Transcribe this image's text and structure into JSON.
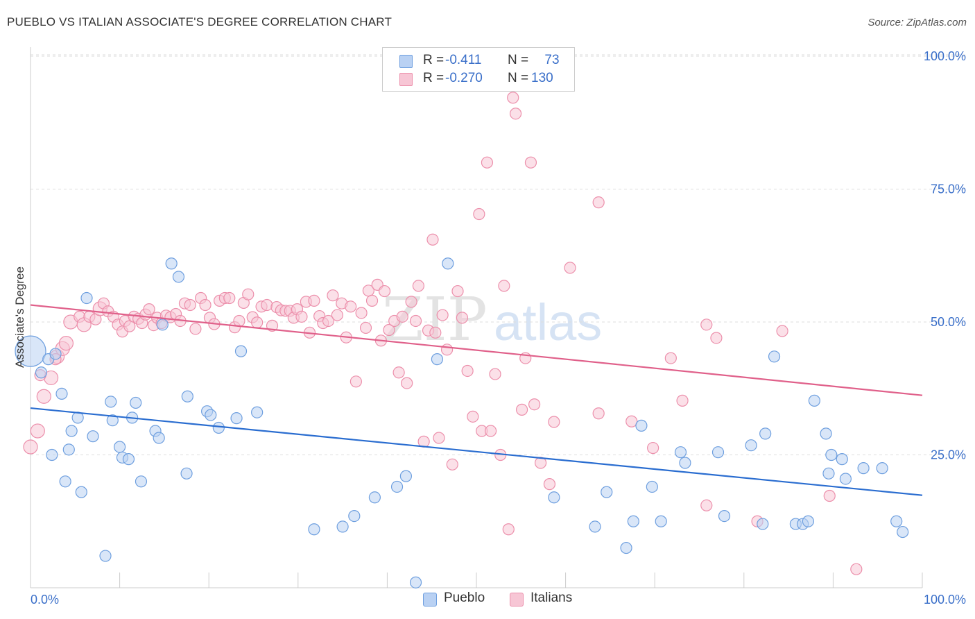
{
  "title": "PUEBLO VS ITALIAN ASSOCIATE'S DEGREE CORRELATION CHART",
  "source": "Source: ZipAtlas.com",
  "watermark": {
    "zip": "ZIP",
    "atlas": "atlas"
  },
  "colors": {
    "pueblo_fill": "#b9d1f3",
    "pueblo_stroke": "#6e9fdf",
    "pueblo_line": "#2a6dd0",
    "italians_fill": "#f7c6d5",
    "italians_stroke": "#ec8fab",
    "italians_line": "#e0608a",
    "tick_label": "#3a6fc9",
    "grid": "#dddddd"
  },
  "legend": {
    "rows": [
      {
        "r_label": "R =",
        "r_value": "-0.411",
        "n_label": "N =",
        "n_value": "73"
      },
      {
        "r_label": "R =",
        "r_value": "-0.270",
        "n_label": "N =",
        "n_value": "130"
      }
    ],
    "bottom": [
      "Pueblo",
      "Italians"
    ]
  },
  "chart_data": {
    "type": "scatter",
    "title": "PUEBLO VS ITALIAN ASSOCIATE'S DEGREE CORRELATION CHART",
    "xlabel": "",
    "ylabel": "Associate's Degree",
    "xlim": [
      0,
      100
    ],
    "ylim": [
      0,
      100
    ],
    "x_tick_labels": [
      "0.0%",
      "100.0%"
    ],
    "y_ticks": [
      25,
      50,
      75,
      100
    ],
    "y_tick_labels": [
      "25.0%",
      "50.0%",
      "75.0%",
      "100.0%"
    ],
    "grid": "horizontal dashed",
    "legend_position": "top-center",
    "series": [
      {
        "name": "Pueblo",
        "r": -0.411,
        "n": 73,
        "trend": {
          "x": [
            0,
            100
          ],
          "y": [
            33.8,
            17.4
          ]
        },
        "points": [
          [
            0,
            44.5,
            3
          ],
          [
            2,
            43,
            1
          ],
          [
            1.2,
            40.5,
            1
          ],
          [
            2.8,
            44,
            1
          ],
          [
            3.5,
            36.5,
            1
          ],
          [
            2.4,
            25,
            1
          ],
          [
            4.6,
            29.5,
            1
          ],
          [
            5.3,
            32,
            1
          ],
          [
            4.3,
            26,
            1
          ],
          [
            3.9,
            20,
            1
          ],
          [
            5.7,
            18,
            1
          ],
          [
            6.3,
            54.5,
            1
          ],
          [
            7,
            28.5,
            1
          ],
          [
            9,
            35,
            1
          ],
          [
            9.2,
            31.5,
            1
          ],
          [
            10,
            26.5,
            1
          ],
          [
            10.3,
            24.5,
            1
          ],
          [
            11,
            24.2,
            1
          ],
          [
            11.4,
            32,
            1
          ],
          [
            11.8,
            34.8,
            1
          ],
          [
            12.4,
            20,
            1
          ],
          [
            14,
            29.5,
            1
          ],
          [
            14.4,
            28.2,
            1
          ],
          [
            14.8,
            49.5,
            1
          ],
          [
            15.8,
            61,
            1
          ],
          [
            16.6,
            58.5,
            1
          ],
          [
            17.6,
            36,
            1
          ],
          [
            17.5,
            21.5,
            1
          ],
          [
            19.8,
            33.2,
            1
          ],
          [
            20.2,
            32.5,
            1
          ],
          [
            21.1,
            30.1,
            1
          ],
          [
            23.1,
            31.9,
            1
          ],
          [
            23.6,
            44.5,
            1
          ],
          [
            25.4,
            33,
            1
          ],
          [
            8.4,
            6,
            1
          ],
          [
            31.8,
            11,
            1
          ],
          [
            35,
            11.5,
            1
          ],
          [
            36.3,
            13.5,
            1
          ],
          [
            38.6,
            17,
            1
          ],
          [
            41.1,
            19,
            1
          ],
          [
            42.1,
            21,
            1
          ],
          [
            43.2,
            1,
            1
          ],
          [
            45.6,
            43,
            1
          ],
          [
            46.8,
            61,
            1
          ],
          [
            58.7,
            17,
            1
          ],
          [
            63.3,
            11.5,
            1
          ],
          [
            64.6,
            18,
            1
          ],
          [
            66.8,
            7.5,
            1
          ],
          [
            67.6,
            12.5,
            1
          ],
          [
            68.5,
            30.5,
            1
          ],
          [
            69.7,
            19,
            1
          ],
          [
            70.7,
            12.5,
            1
          ],
          [
            72.9,
            25.5,
            1
          ],
          [
            73.4,
            23.5,
            1
          ],
          [
            77.1,
            25.5,
            1
          ],
          [
            77.8,
            13.5,
            1
          ],
          [
            80.8,
            26.8,
            1
          ],
          [
            82.4,
            29,
            1
          ],
          [
            83.4,
            43.5,
            1
          ],
          [
            85.8,
            12,
            1
          ],
          [
            87.9,
            35.2,
            1
          ],
          [
            89.2,
            29,
            1
          ],
          [
            89.5,
            21.5,
            1
          ],
          [
            89.8,
            25,
            1
          ],
          [
            91,
            24.2,
            1
          ],
          [
            91.4,
            20.5,
            1
          ],
          [
            93.4,
            22.5,
            1
          ],
          [
            95.5,
            22.5,
            1
          ],
          [
            97.1,
            12.5,
            1
          ],
          [
            97.8,
            10.5,
            1
          ],
          [
            86.6,
            12,
            1
          ],
          [
            87.2,
            12.5,
            1
          ],
          [
            82.1,
            12,
            1
          ]
        ]
      },
      {
        "name": "Italians",
        "r": -0.27,
        "n": 130,
        "trend": {
          "x": [
            0,
            100
          ],
          "y": [
            53.2,
            36.2
          ]
        },
        "points": [
          [
            0,
            26.5,
            2
          ],
          [
            0.8,
            29.5,
            2
          ],
          [
            1.5,
            36,
            2
          ],
          [
            2.3,
            39.5,
            2
          ],
          [
            3,
            43.5,
            2
          ],
          [
            3.6,
            45,
            2
          ],
          [
            4,
            46,
            2
          ],
          [
            4.5,
            50,
            2
          ],
          [
            5.5,
            51,
            1
          ],
          [
            6,
            49.5,
            2
          ],
          [
            6.6,
            51,
            1
          ],
          [
            7.3,
            50.5,
            1
          ],
          [
            7.8,
            52.5,
            2
          ],
          [
            8.2,
            53.5,
            1
          ],
          [
            8.7,
            52,
            1
          ],
          [
            9.3,
            51,
            1
          ],
          [
            9.8,
            49.5,
            1
          ],
          [
            10.3,
            48.2,
            1
          ],
          [
            10.6,
            50.2,
            1
          ],
          [
            11.1,
            49.2,
            1
          ],
          [
            11.6,
            51,
            1
          ],
          [
            12.1,
            50.6,
            1
          ],
          [
            12.5,
            49.8,
            1
          ],
          [
            12.9,
            51.4,
            1
          ],
          [
            13.3,
            52.4,
            1
          ],
          [
            13.8,
            49.4,
            1
          ],
          [
            14.2,
            50.8,
            1
          ],
          [
            14.7,
            49.8,
            1
          ],
          [
            15.2,
            51.2,
            1
          ],
          [
            15.7,
            50.9,
            1
          ],
          [
            16.3,
            51.5,
            1
          ],
          [
            16.8,
            50.2,
            1
          ],
          [
            17.3,
            53.5,
            1
          ],
          [
            17.9,
            53.2,
            1
          ],
          [
            18.5,
            48.7,
            1
          ],
          [
            19.1,
            54.5,
            1
          ],
          [
            19.6,
            53.2,
            1
          ],
          [
            20.1,
            50.8,
            1
          ],
          [
            20.6,
            49.6,
            1
          ],
          [
            21.2,
            54,
            1
          ],
          [
            21.8,
            54.5,
            1
          ],
          [
            22.3,
            54.5,
            1
          ],
          [
            22.9,
            49,
            1
          ],
          [
            23.4,
            50.2,
            1
          ],
          [
            23.9,
            53.6,
            1
          ],
          [
            24.4,
            55.2,
            1
          ],
          [
            24.9,
            50.9,
            1
          ],
          [
            25.4,
            49.9,
            1
          ],
          [
            25.9,
            52.9,
            1
          ],
          [
            26.5,
            53.2,
            1
          ],
          [
            27.1,
            49.3,
            1
          ],
          [
            27.6,
            52.8,
            1
          ],
          [
            28.1,
            52.2,
            1
          ],
          [
            28.6,
            52.1,
            1
          ],
          [
            29.1,
            52.1,
            1
          ],
          [
            29.5,
            50.8,
            1
          ],
          [
            29.9,
            52.4,
            1
          ],
          [
            30.4,
            51,
            1
          ],
          [
            30.9,
            53.8,
            1
          ],
          [
            31.3,
            48,
            1
          ],
          [
            31.8,
            54,
            1
          ],
          [
            32.4,
            51.1,
            1
          ],
          [
            32.8,
            49.8,
            1
          ],
          [
            33.4,
            50.2,
            1
          ],
          [
            33.9,
            55,
            1
          ],
          [
            34.4,
            51.3,
            1
          ],
          [
            34.9,
            53.5,
            1
          ],
          [
            35.4,
            47.1,
            1
          ],
          [
            35.9,
            52.9,
            1
          ],
          [
            36.5,
            38.8,
            1
          ],
          [
            37.1,
            51.7,
            1
          ],
          [
            37.6,
            48.9,
            1
          ],
          [
            37.9,
            55.9,
            1
          ],
          [
            38.3,
            54,
            1
          ],
          [
            38.9,
            57,
            1
          ],
          [
            39.3,
            46.5,
            1
          ],
          [
            39.7,
            55.8,
            1
          ],
          [
            40.2,
            48.5,
            1
          ],
          [
            40.8,
            50.2,
            1
          ],
          [
            41.3,
            40.5,
            1
          ],
          [
            41.7,
            51,
            1
          ],
          [
            42.2,
            38.5,
            1
          ],
          [
            42.7,
            53.8,
            1
          ],
          [
            43.2,
            50.2,
            1
          ],
          [
            43.5,
            56.8,
            1
          ],
          [
            44.1,
            27.5,
            1
          ],
          [
            44.6,
            48.4,
            1
          ],
          [
            45.1,
            65.5,
            1
          ],
          [
            45.4,
            48,
            1
          ],
          [
            45.8,
            28.2,
            1
          ],
          [
            46.2,
            51.3,
            1
          ],
          [
            46.7,
            44.8,
            1
          ],
          [
            47.3,
            23.2,
            1
          ],
          [
            47.9,
            55.8,
            1
          ],
          [
            48.4,
            50.8,
            1
          ],
          [
            49,
            40.8,
            1
          ],
          [
            49.6,
            32.2,
            1
          ],
          [
            50.3,
            70.3,
            1
          ],
          [
            50.6,
            29.5,
            1
          ],
          [
            51.2,
            80,
            1
          ],
          [
            51.6,
            29.5,
            1
          ],
          [
            52.1,
            40.2,
            1
          ],
          [
            52.7,
            25,
            1
          ],
          [
            53.1,
            56.8,
            1
          ],
          [
            53.6,
            11,
            1
          ],
          [
            54.1,
            92.2,
            1
          ],
          [
            54.4,
            89.2,
            1
          ],
          [
            55.1,
            33.5,
            1
          ],
          [
            55.5,
            43.2,
            1
          ],
          [
            56.1,
            80,
            1
          ],
          [
            56.5,
            34.5,
            1
          ],
          [
            57.2,
            23.5,
            1
          ],
          [
            58.2,
            19.5,
            1
          ],
          [
            58.7,
            31.2,
            1
          ],
          [
            60.5,
            60.2,
            1
          ],
          [
            63.7,
            32.8,
            1
          ],
          [
            63.7,
            72.5,
            1
          ],
          [
            67.4,
            31.3,
            1
          ],
          [
            69.8,
            26.3,
            1
          ],
          [
            71.8,
            43.2,
            1
          ],
          [
            73.1,
            35.2,
            1
          ],
          [
            75.8,
            15.5,
            1
          ],
          [
            75.8,
            49.5,
            1
          ],
          [
            76.9,
            47,
            1
          ],
          [
            81.5,
            12.5,
            1
          ],
          [
            84.3,
            48.3,
            1
          ],
          [
            89.6,
            17.3,
            1
          ],
          [
            92.6,
            3.5,
            1
          ],
          [
            2.8,
            43,
            1
          ],
          [
            1.1,
            40,
            1
          ]
        ]
      }
    ]
  }
}
